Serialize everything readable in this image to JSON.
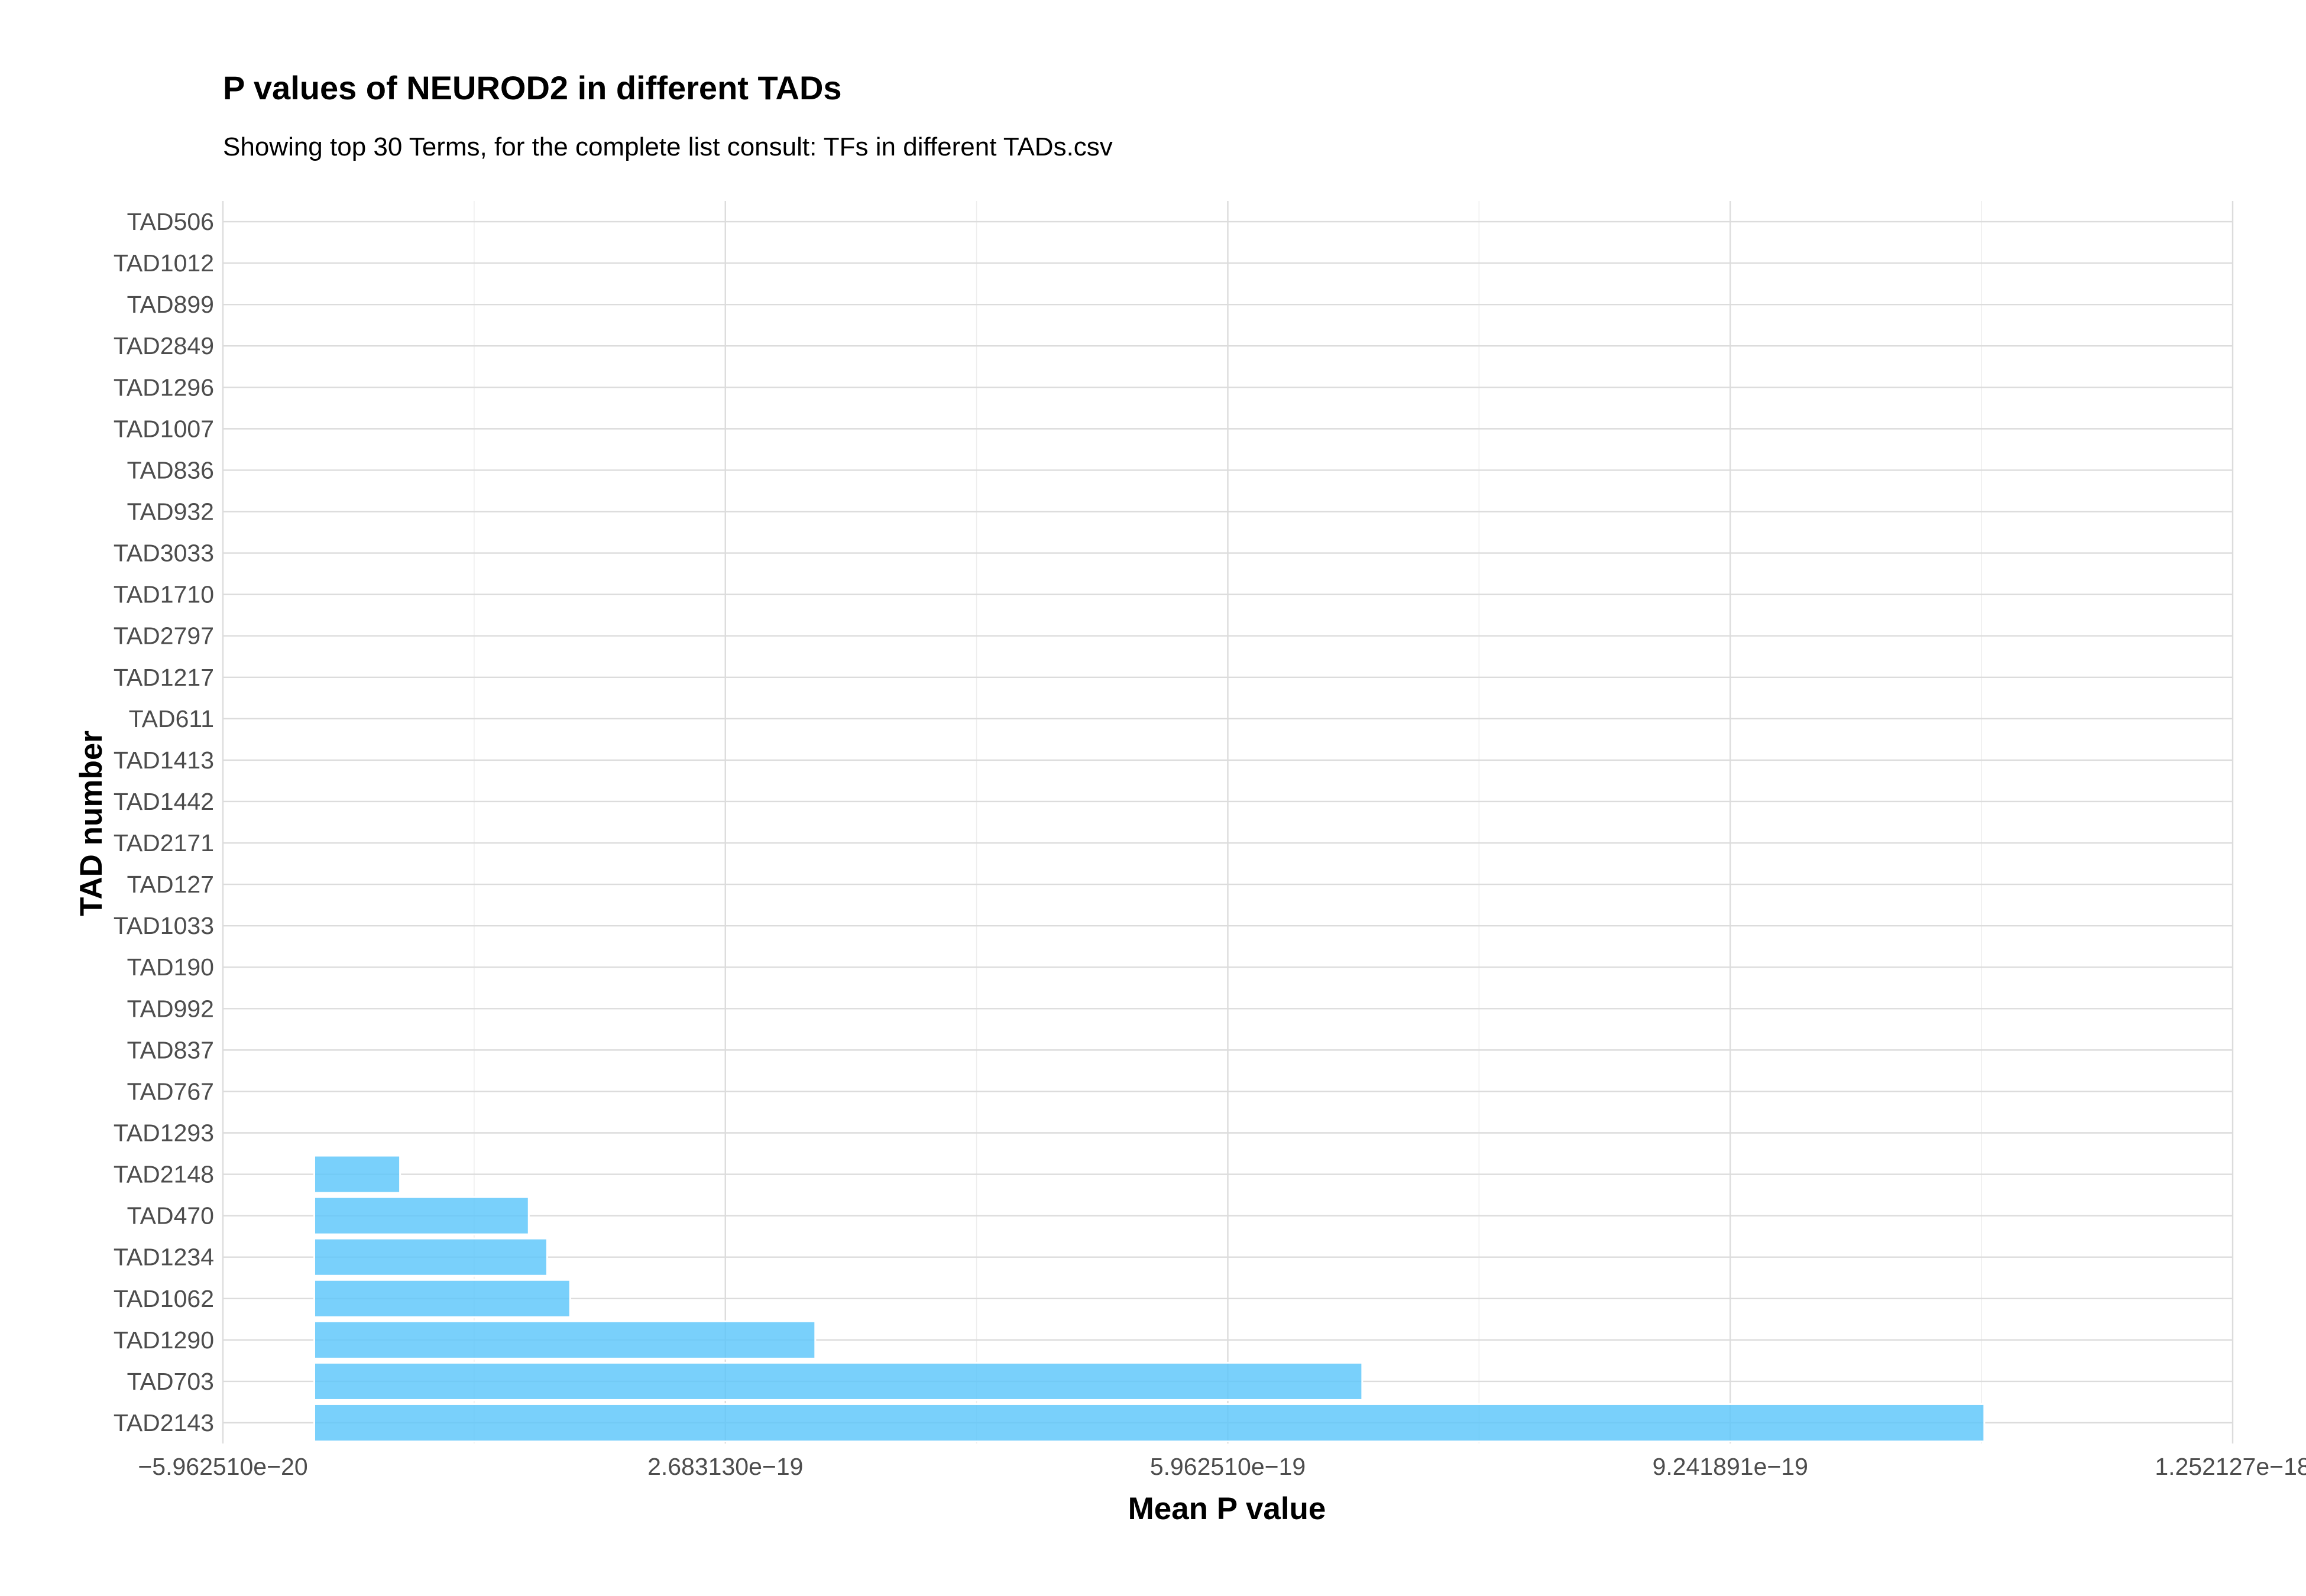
{
  "chart_data": {
    "type": "bar",
    "orientation": "horizontal",
    "title": "P values of NEUROD2 in different TADs",
    "subtitle": "Showing top 30 Terms, for the complete list consult: TFs in different TADs.csv",
    "xlabel": "Mean P value",
    "ylabel": "TAD number",
    "categories": [
      "TAD2143",
      "TAD703",
      "TAD1290",
      "TAD1062",
      "TAD1234",
      "TAD470",
      "TAD2148",
      "TAD1293",
      "TAD767",
      "TAD837",
      "TAD992",
      "TAD190",
      "TAD1033",
      "TAD127",
      "TAD2171",
      "TAD1442",
      "TAD1413",
      "TAD611",
      "TAD1217",
      "TAD2797",
      "TAD1710",
      "TAD3033",
      "TAD932",
      "TAD836",
      "TAD1007",
      "TAD1296",
      "TAD2849",
      "TAD899",
      "TAD1012",
      "TAD506"
    ],
    "values": [
      1.09e-18,
      6.84e-19,
      3.27e-19,
      1.67e-19,
      1.52e-19,
      1.4e-19,
      5.6e-20,
      0,
      0,
      0,
      0,
      0,
      0,
      0,
      0,
      0,
      0,
      0,
      0,
      0,
      0,
      0,
      0,
      0,
      0,
      0,
      0,
      0,
      0,
      0
    ],
    "xlim": [
      -5.96251e-20,
      1.252127e-18
    ],
    "xticks": [
      -5.96251e-20,
      2.68313e-19,
      5.96251e-19,
      9.241891e-19,
      1.252127e-18
    ],
    "xtick_labels": [
      "−5.962510e−20",
      "2.683130e−19",
      "5.962510e−19",
      "9.241891e−19",
      "1.252127e−18"
    ],
    "grid": true,
    "bar_color": "#5bc6fa"
  }
}
